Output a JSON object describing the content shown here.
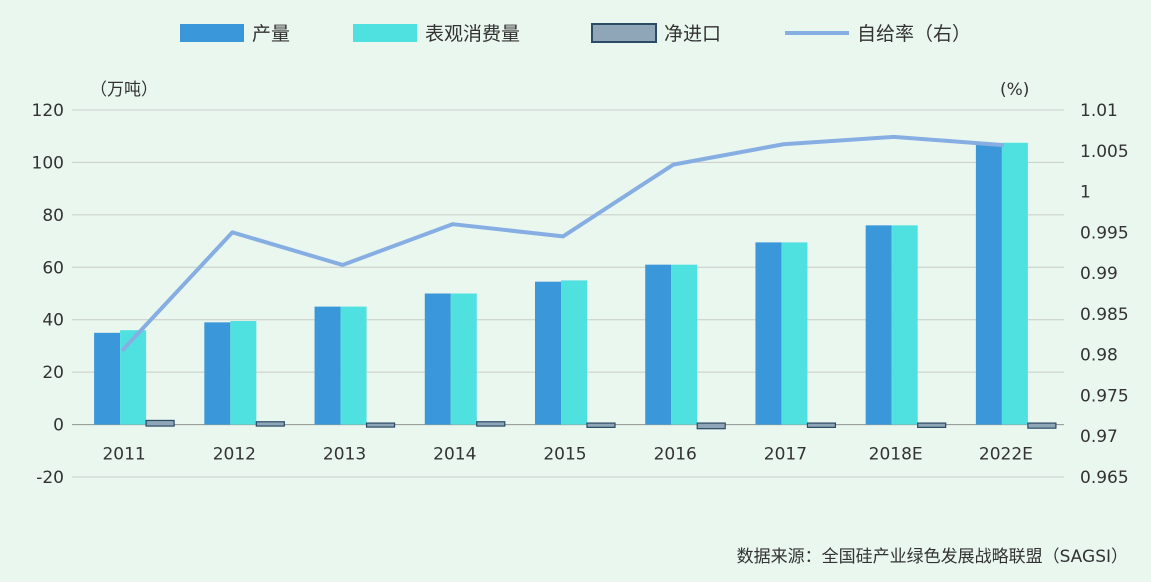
{
  "chart_data": {
    "type": "bar",
    "categories": [
      "2011",
      "2012",
      "2013",
      "2014",
      "2015",
      "2016",
      "2017",
      "2018E",
      "2022E"
    ],
    "series": [
      {
        "name": "产量",
        "kind": "bar",
        "axis": "left",
        "color": "#3a97d9",
        "values": [
          35,
          39,
          45,
          50,
          54.5,
          61,
          69.5,
          76,
          107
        ]
      },
      {
        "name": "表观消费量",
        "kind": "bar",
        "axis": "left",
        "color": "#4fe0e0",
        "values": [
          36,
          39.5,
          45,
          50,
          55,
          61,
          69.5,
          76,
          107.5
        ]
      },
      {
        "name": "净进口",
        "kind": "bar",
        "axis": "left",
        "color": "#8fa6b8",
        "values": [
          1,
          0.5,
          0,
          0.5,
          -0.5,
          -1,
          -0.5,
          -0.5,
          -0.8
        ]
      },
      {
        "name": "自给率（右）",
        "kind": "line",
        "axis": "right",
        "color": "#87aee3",
        "values": [
          0.9805,
          0.995,
          0.991,
          0.996,
          0.9945,
          1.0033,
          1.0058,
          1.0067,
          1.0057
        ]
      }
    ],
    "y_left": {
      "label": "（万吨）",
      "ylim": [
        -20,
        120
      ],
      "ticks": [
        "-20",
        "0",
        "20",
        "40",
        "60",
        "80",
        "100",
        "120"
      ]
    },
    "y_right": {
      "label": "(%)",
      "ylim": [
        0.965,
        1.01
      ],
      "ticks": [
        "0.965",
        "0.97",
        "0.975",
        "0.98",
        "0.985",
        "0.99",
        "0.995",
        "1",
        "1.005",
        "1.01"
      ]
    },
    "legend_position": "top",
    "grid": true,
    "source": "数据来源：全国硅产业绿色发展战略联盟（SAGSI）"
  }
}
